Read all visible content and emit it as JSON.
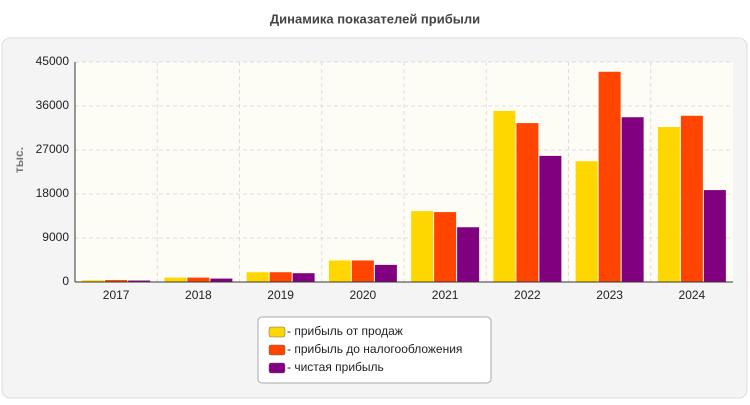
{
  "chart_data": {
    "type": "bar",
    "title": "Динамика показателей прибыли",
    "y_label": "тыс.",
    "categories": [
      "2017",
      "2018",
      "2019",
      "2020",
      "2021",
      "2022",
      "2023",
      "2024"
    ],
    "series": [
      {
        "name": "- прибыль от продаж",
        "color": "#ffd700",
        "values": [
          350,
          900,
          2000,
          4400,
          14500,
          35000,
          24700,
          31700
        ]
      },
      {
        "name": "- прибыль до налогообложения",
        "color": "#ff4500",
        "values": [
          400,
          900,
          2000,
          4400,
          14300,
          32500,
          43000,
          34000
        ]
      },
      {
        "name": "- чистая прибыль",
        "color": "#800080",
        "values": [
          300,
          700,
          1800,
          3500,
          11200,
          25800,
          33700,
          18800
        ]
      }
    ],
    "ylim": [
      0,
      45000
    ],
    "yticks": [
      0,
      9000,
      18000,
      27000,
      36000,
      45000
    ],
    "grid": true,
    "legend": "bottom"
  }
}
